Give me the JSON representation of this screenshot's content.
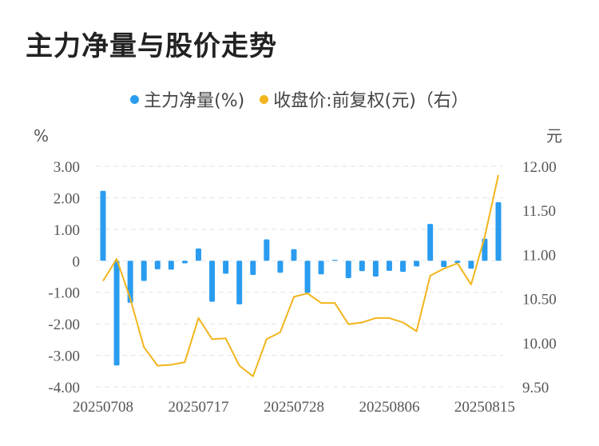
{
  "title": "主力净量与股价走势",
  "chart_data": {
    "type": "bar+line",
    "title": "主力净量与股价走势",
    "legend_position": "top",
    "series": [
      {
        "name": "主力净量(%)",
        "type": "bar",
        "axis": "left",
        "color": "#2a9cf0",
        "values": [
          2.22,
          -3.32,
          -1.33,
          -0.64,
          -0.27,
          -0.28,
          -0.08,
          0.39,
          -1.3,
          -0.41,
          -1.38,
          -0.45,
          0.68,
          -0.38,
          0.37,
          -1.02,
          -0.43,
          0.03,
          -0.55,
          -0.33,
          -0.5,
          -0.32,
          -0.35,
          -0.18,
          1.17,
          -0.2,
          -0.07,
          -0.25,
          0.7,
          1.86
        ]
      },
      {
        "name": "收盘价:前复权(元)（右）",
        "type": "line",
        "axis": "right",
        "color": "#f2b51c",
        "values": [
          10.7,
          10.95,
          10.5,
          9.95,
          9.74,
          9.75,
          9.78,
          10.28,
          10.04,
          10.05,
          9.74,
          9.62,
          10.04,
          10.12,
          10.52,
          10.56,
          10.45,
          10.45,
          10.21,
          10.23,
          10.28,
          10.28,
          10.23,
          10.13,
          10.76,
          10.84,
          10.9,
          10.66,
          11.2,
          11.9
        ]
      }
    ],
    "x_tick_labels": [
      "20250708",
      "20250717",
      "20250728",
      "20250806",
      "20250815"
    ],
    "x_tick_positions": [
      0,
      7,
      14,
      21,
      28
    ],
    "y_left": {
      "unit": "%",
      "ylim": [
        -4,
        3
      ],
      "ticks": [
        3,
        2,
        1,
        0,
        -1,
        -2,
        -3,
        -4
      ],
      "tick_labels": [
        "3.00",
        "2.00",
        "1.00",
        "0",
        "-1.00",
        "-2.00",
        "-3.00",
        "-4.00"
      ]
    },
    "y_right": {
      "unit": "元",
      "ylim": [
        9.5,
        12
      ],
      "ticks": [
        12,
        11.5,
        11,
        10.5,
        10,
        9.5
      ],
      "tick_labels": [
        "12.00",
        "11.50",
        "11.00",
        "10.50",
        "10.00",
        "9.50"
      ]
    },
    "grid": true
  }
}
